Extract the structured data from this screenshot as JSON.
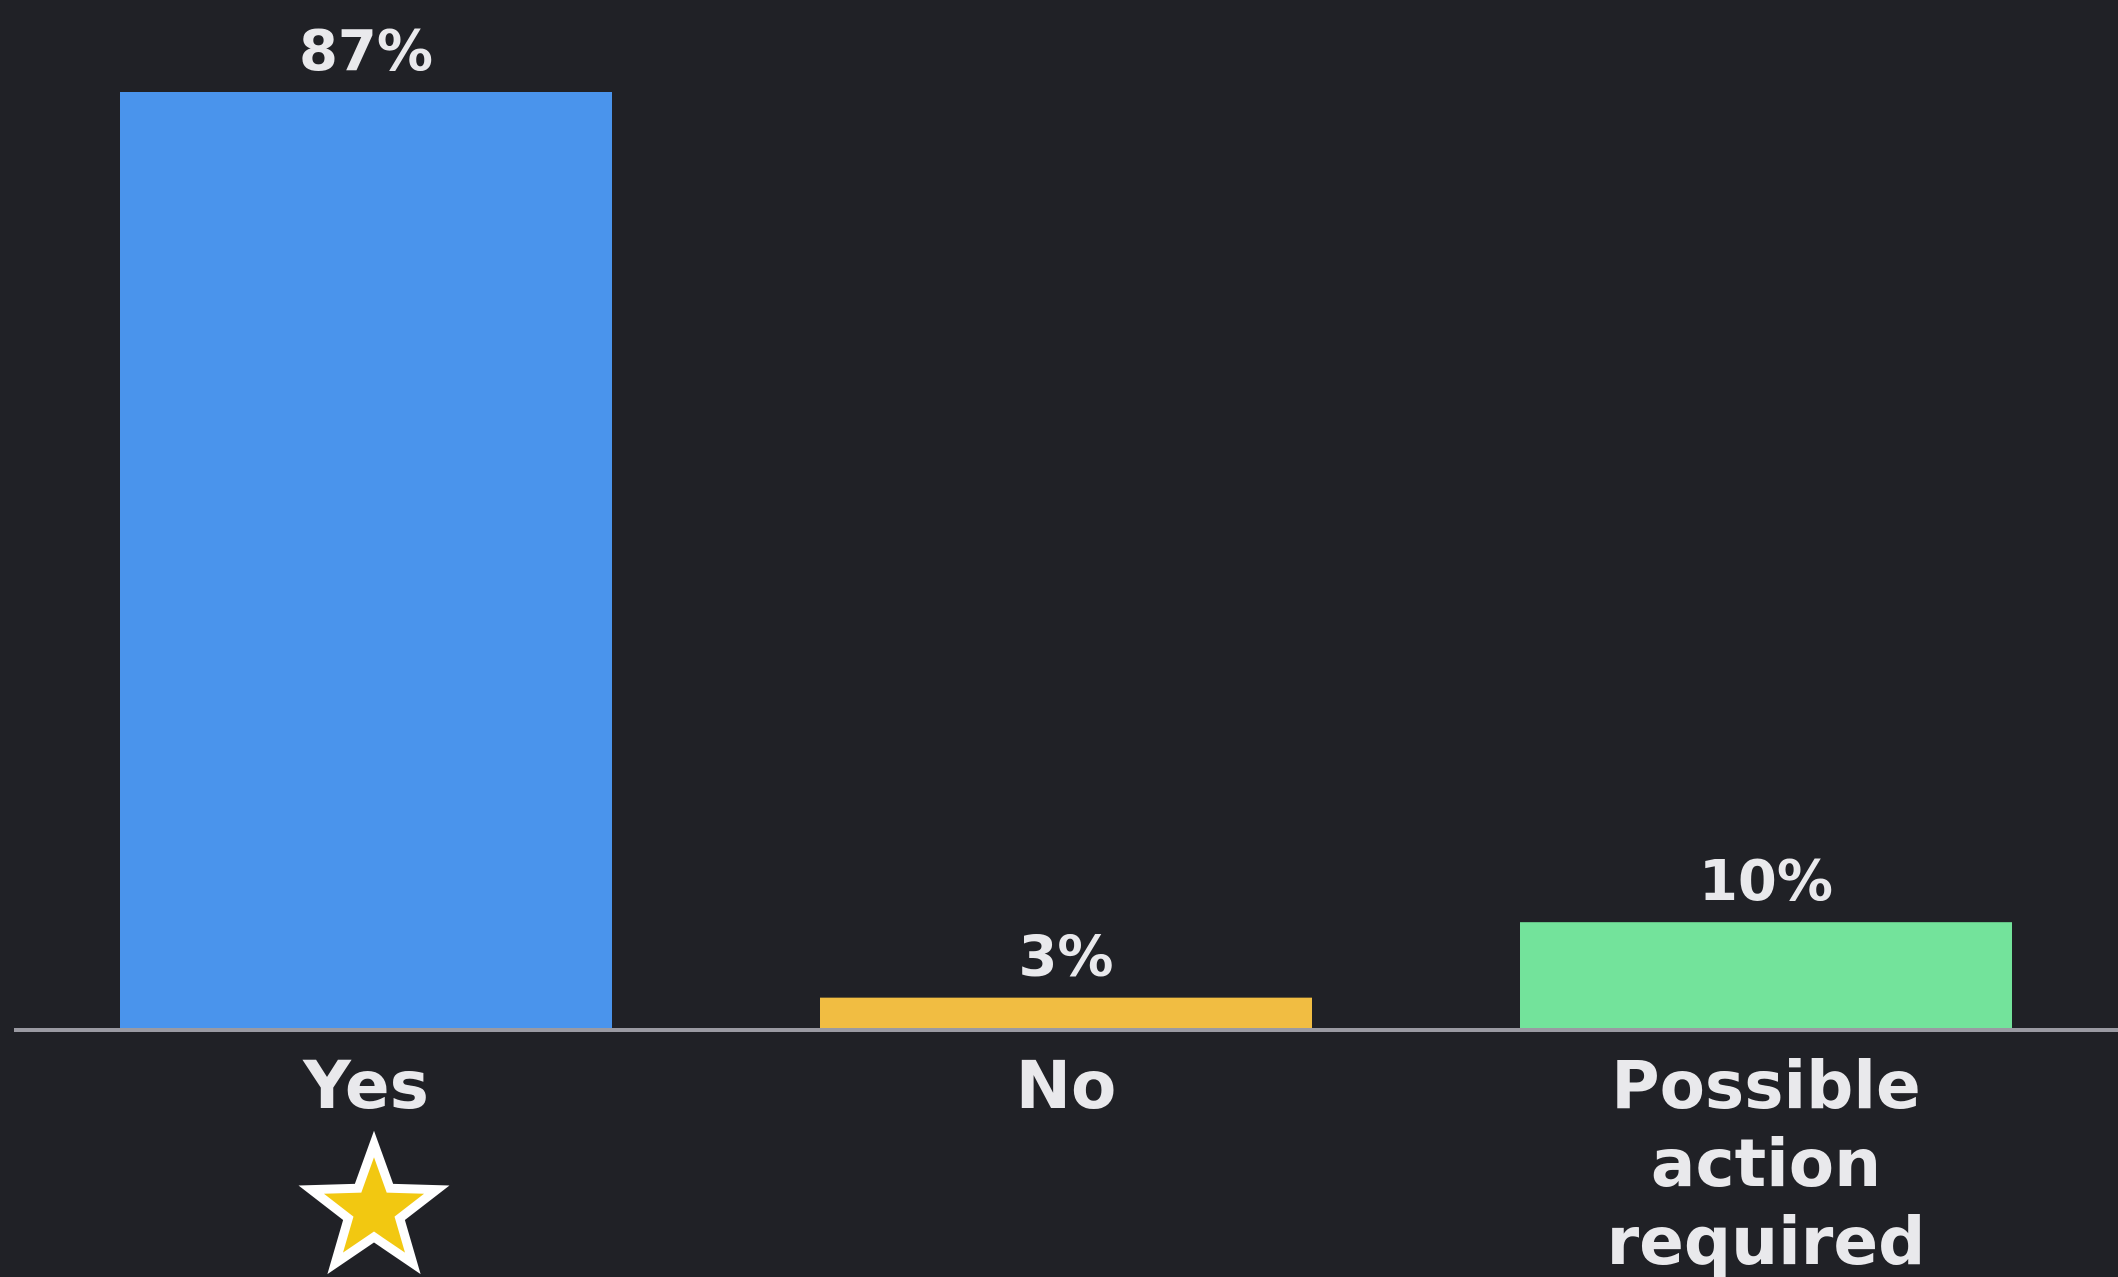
{
  "chart_data": {
    "type": "bar",
    "categories": [
      "Yes",
      "No",
      "Possible action required"
    ],
    "category_lines": [
      [
        "Yes"
      ],
      [
        "No"
      ],
      [
        "Possible",
        "action",
        "required"
      ]
    ],
    "values": [
      87,
      3,
      10
    ],
    "value_labels": [
      "87%",
      "3%",
      "10%"
    ],
    "unit": "%",
    "ylim": [
      0,
      87
    ],
    "colors": [
      "#4a94ec",
      "#f1bd42",
      "#73e39b"
    ],
    "highlight": {
      "category": "Yes",
      "icon": "star-icon",
      "color": "#f2c811"
    },
    "grid": false,
    "legend": "none",
    "title": "",
    "xlabel": "",
    "ylabel": ""
  },
  "style": {
    "background": "#202126",
    "axis_color": "#9a9aa2",
    "text_color": "#e9e9ec"
  }
}
